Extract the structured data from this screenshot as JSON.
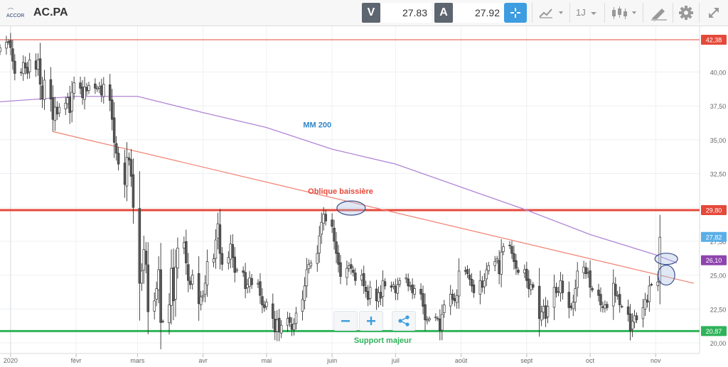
{
  "header": {
    "logo_text": "ACCOR",
    "symbol": "AC.PA",
    "bid_tag": "V",
    "bid_value": "27.83",
    "ask_tag": "A",
    "ask_value": "27.92",
    "period_label": "1J"
  },
  "icons": [
    "crosshair-icon",
    "chart-type-icon",
    "candles-icon",
    "draw-icon",
    "gear-icon",
    "fullscreen-icon",
    "zoom-out-icon",
    "zoom-in-icon",
    "share-icon"
  ],
  "colors": {
    "up": "#ffffff",
    "down": "#5a5a5a",
    "ma": "#b085d6",
    "resistance": "#e5493a",
    "support": "#2fb35a",
    "accent": "#3d9de0"
  },
  "chart_data": {
    "type": "candlestick",
    "ylim": [
      19.5,
      43.0
    ],
    "yticks": [
      "20,00",
      "22,50",
      "25,00",
      "27,50",
      "30,00",
      "32,50",
      "35,00",
      "37,50",
      "40,00"
    ],
    "xticks": [
      "2020",
      "févr",
      "mars",
      "avr",
      "mai",
      "juin",
      "juil",
      "août",
      "sept",
      "oct",
      "nov"
    ],
    "price_tags": [
      {
        "text": "42,38",
        "value": 42.38,
        "color": "#e5493a"
      },
      {
        "text": "29,80",
        "value": 29.8,
        "color": "#e5493a"
      },
      {
        "text": "27,82",
        "value": 27.82,
        "color": "#5aaee8"
      },
      {
        "text": "26,10",
        "value": 26.1,
        "color": "#8e44ad"
      },
      {
        "text": "20,87",
        "value": 20.87,
        "color": "#2fb35a"
      }
    ],
    "horizontal_lines": [
      {
        "value": 42.38,
        "color": "#e5493a",
        "width": 1
      },
      {
        "value": 29.8,
        "color": "#e5493a",
        "width": 3
      },
      {
        "value": 20.87,
        "color": "#2fb35a",
        "width": 3
      }
    ],
    "annotations": [
      {
        "text": "MM 200",
        "color": "#2f86c9",
        "x": "2020-05-25",
        "y": 35.9
      },
      {
        "text": "Oblique baissière",
        "color": "#e5493a",
        "x": "2020-06-05",
        "y": 31.0
      },
      {
        "text": "Support majeur",
        "color": "#2fb35a",
        "x": "2020-06-25",
        "y": 20.0
      }
    ],
    "trendline": {
      "from": {
        "x": "2020-01-21",
        "y": 35.6
      },
      "to": {
        "x": "2020-11-19",
        "y": 24.4
      }
    },
    "ellipses": [
      {
        "x": "2020-06-10",
        "y": 29.95
      },
      {
        "x": "2020-11-06",
        "y": 26.2
      },
      {
        "x": "2020-11-06",
        "y": 25.0
      }
    ],
    "ma200": {
      "name": "MM 200",
      "x": [
        "2019-12-27",
        "2020-02-01",
        "2020-03-01",
        "2020-04-01",
        "2020-05-01",
        "2020-06-01",
        "2020-07-01",
        "2020-08-01",
        "2020-09-01",
        "2020-10-01",
        "2020-11-01",
        "2020-11-11"
      ],
      "y": [
        37.8,
        38.2,
        38.2,
        37.0,
        35.9,
        34.3,
        33.2,
        31.5,
        29.8,
        28.0,
        26.5,
        25.9
      ]
    },
    "candles": {
      "start_date": "2019-12-27",
      "dates_rule": "consecutive business days",
      "close": [
        41.8,
        42.2,
        42.2,
        41.8,
        40.8,
        39.9,
        40.0,
        40.7,
        40.3,
        39.9,
        40.9,
        40.2,
        40.9,
        39.1,
        38.0,
        39.4,
        38.0,
        36.5,
        37.4,
        36.9,
        37.4,
        37.7,
        38.1,
        37.0,
        38.5,
        39.2,
        38.8,
        38.1,
        38.9,
        38.6,
        39.0,
        38.8,
        38.8,
        38.9,
        38.3,
        39.1,
        37.9,
        36.5,
        34.8,
        34.0,
        33.2,
        31.7,
        33.7,
        33.5,
        32.3,
        30.0,
        24.4,
        25.3,
        26.9,
        25.8,
        22.3,
        23.1,
        24.0,
        25.4,
        21.5,
        21.6,
        22.8,
        25.5,
        23.1,
        25.6,
        27.0,
        27.4,
        25.9,
        24.6,
        24.3,
        25.0,
        22.9,
        23.4,
        23.5,
        24.4,
        26.0,
        26.2,
        27.6,
        28.8,
        26.6,
        25.8,
        26.3,
        27.3,
        26.3,
        25.2,
        25.4,
        25.2,
        24.0,
        24.3,
        24.8,
        24.3,
        24.4,
        23.5,
        22.8,
        22.6,
        23.0,
        21.8,
        20.8,
        21.7,
        20.8,
        21.3,
        21.8,
        21.5,
        21.0,
        21.4,
        22.2,
        23.2,
        24.2,
        25.4,
        25.8,
        25.9,
        26.6,
        27.9,
        28.9,
        29.5,
        29.0,
        28.6,
        27.5,
        26.6,
        25.8,
        24.9,
        25.5,
        25.7,
        25.5,
        25.2,
        24.6,
        25.0,
        24.2,
        23.8,
        23.2,
        24.1,
        23.1,
        23.7,
        23.3,
        24.6,
        24.2,
        24.1,
        24.3,
        23.7,
        24.3,
        24.6,
        24.8,
        24.2,
        24.2,
        23.7,
        24.0,
        23.6,
        22.7,
        21.7,
        21.7,
        21.8,
        21.9,
        21.8,
        20.9,
        22.1,
        22.8,
        23.6,
        23.2,
        23.1,
        23.5,
        25.3,
        25.3,
        25.1,
        24.7,
        24.2,
        23.7,
        24.6,
        24.1,
        24.6,
        25.4,
        25.7,
        26.0,
        26.2,
        25.1,
        26.7,
        27.1,
        27.2,
        26.6,
        26.0,
        25.5,
        25.2,
        25.4,
        24.6,
        24.0,
        24.3,
        24.1,
        21.8,
        22.3,
        22.7,
        21.8,
        22.7,
        24.1,
        23.7,
        23.8,
        24.6,
        23.7,
        22.6,
        22.6,
        23.0,
        24.0,
        25.3,
        25.6,
        25.1,
        25.2,
        24.1,
        23.9,
        23.5,
        22.8,
        22.6,
        22.8,
        22.6,
        24.4,
        23.5,
        23.5,
        22.8,
        22.7,
        22.1,
        20.9,
        21.6,
        22.0,
        21.7,
        22.6,
        23.2,
        23.0,
        24.2,
        24.3,
        24.5,
        27.8
      ]
    }
  }
}
